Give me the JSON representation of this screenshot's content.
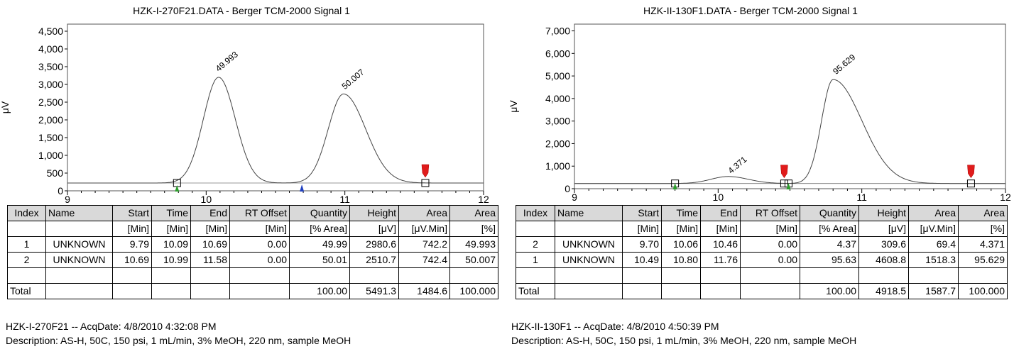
{
  "chart_data": [
    {
      "type": "line",
      "title": "HZK-I-270F21.DATA - Berger TCM-2000 Signal 1",
      "ylabel": "μV",
      "xlim": [
        9,
        12
      ],
      "ylim": [
        0,
        4700
      ],
      "xticks": [
        "9",
        "10",
        "11",
        "12"
      ],
      "yticks": [
        {
          "v": 0,
          "label": "0"
        },
        {
          "v": 500,
          "label": "500"
        },
        {
          "v": 1000,
          "label": "1,000"
        },
        {
          "v": 1500,
          "label": "1,500"
        },
        {
          "v": 2000,
          "label": "2,000"
        },
        {
          "v": 2500,
          "label": "2,500"
        },
        {
          "v": 3000,
          "label": "3,000"
        },
        {
          "v": 3500,
          "label": "3,500"
        },
        {
          "v": 4000,
          "label": "4,000"
        },
        {
          "v": 4500,
          "label": "4,500"
        }
      ],
      "baseline": 220,
      "peaks": [
        {
          "center": 10.09,
          "height": 2980,
          "width_left": 0.11,
          "width_right": 0.12,
          "label": "49.993",
          "label_x": 10.09,
          "label_y": 3350
        },
        {
          "center": 10.99,
          "height": 2510,
          "width_left": 0.11,
          "width_right": 0.16,
          "label": "50.007",
          "label_x": 11.0,
          "label_y": 2850
        }
      ],
      "markers": [
        {
          "type": "square",
          "x": 9.79
        },
        {
          "type": "square",
          "x": 11.58
        },
        {
          "type": "tick-green",
          "x": 9.79
        },
        {
          "type": "tick-blue",
          "x": 10.69
        },
        {
          "type": "flag-red",
          "x": 11.58
        }
      ],
      "table": {
        "headers": [
          "Index",
          "Name",
          "Start",
          "Time",
          "End",
          "RT Offset",
          "Quantity",
          "Height",
          "Area",
          "Area"
        ],
        "units": [
          "",
          "",
          "[Min]",
          "[Min]",
          "[Min]",
          "[Min]",
          "[% Area]",
          "[μV]",
          "[μV.Min]",
          "[%]"
        ],
        "rows": [
          [
            "1",
            "UNKNOWN",
            "9.79",
            "10.09",
            "10.69",
            "0.00",
            "49.99",
            "2980.6",
            "742.2",
            "49.993"
          ],
          [
            "2",
            "UNKNOWN",
            "10.69",
            "10.99",
            "11.58",
            "0.00",
            "50.01",
            "2510.7",
            "742.4",
            "50.007"
          ]
        ],
        "total": [
          "Total",
          "",
          "",
          "",
          "",
          "",
          "100.00",
          "5491.3",
          "1484.6",
          "100.000"
        ]
      },
      "info_line1": "HZK-I-270F21 -- AcqDate: 4/8/2010 4:32:08 PM",
      "info_line2": "Description: AS-H, 50C, 150 psi, 1 mL/min, 3% MeOH,  220 nm, sample MeOH"
    },
    {
      "type": "line",
      "title": "HZK-II-130F1.DATA - Berger TCM-2000 Signal 1",
      "ylabel": "μV",
      "xlim": [
        9,
        12
      ],
      "ylim": [
        0,
        7300
      ],
      "xticks": [
        "9",
        "10",
        "11",
        "12"
      ],
      "yticks": [
        {
          "v": 0,
          "label": "0"
        },
        {
          "v": 1000,
          "label": "1,000"
        },
        {
          "v": 2000,
          "label": "2,000"
        },
        {
          "v": 3000,
          "label": "3,000"
        },
        {
          "v": 4000,
          "label": "4,000"
        },
        {
          "v": 5000,
          "label": "5,000"
        },
        {
          "v": 6000,
          "label": "6,000"
        },
        {
          "v": 7000,
          "label": "7,000"
        }
      ],
      "baseline": 230,
      "peaks": [
        {
          "center": 10.07,
          "height": 310,
          "width_left": 0.12,
          "width_right": 0.14,
          "label": "4.371",
          "label_x": 10.09,
          "label_y": 650
        },
        {
          "center": 10.8,
          "height": 4610,
          "width_left": 0.08,
          "width_right": 0.2,
          "label": "95.629",
          "label_x": 10.82,
          "label_y": 5050
        }
      ],
      "markers": [
        {
          "type": "square",
          "x": 9.7
        },
        {
          "type": "square",
          "x": 10.46
        },
        {
          "type": "square",
          "x": 10.49
        },
        {
          "type": "square",
          "x": 11.76
        },
        {
          "type": "tick-green",
          "x": 9.7
        },
        {
          "type": "tick-green",
          "x": 10.49
        },
        {
          "type": "flag-red",
          "x": 10.46
        },
        {
          "type": "flag-red",
          "x": 11.76
        }
      ],
      "table": {
        "headers": [
          "Index",
          "Name",
          "Start",
          "Time",
          "End",
          "RT Offset",
          "Quantity",
          "Height",
          "Area",
          "Area"
        ],
        "units": [
          "",
          "",
          "[Min]",
          "[Min]",
          "[Min]",
          "[Min]",
          "[% Area]",
          "[μV]",
          "[μV.Min]",
          "[%]"
        ],
        "rows": [
          [
            "2",
            "UNKNOWN",
            "9.70",
            "10.06",
            "10.46",
            "0.00",
            "4.37",
            "309.6",
            "69.4",
            "4.371"
          ],
          [
            "1",
            "UNKNOWN",
            "10.49",
            "10.80",
            "11.76",
            "0.00",
            "95.63",
            "4608.8",
            "1518.3",
            "95.629"
          ]
        ],
        "total": [
          "Total",
          "",
          "",
          "",
          "",
          "",
          "100.00",
          "4918.5",
          "1587.7",
          "100.000"
        ]
      },
      "info_line1": "HZK-II-130F1 -- AcqDate: 4/8/2010 4:50:39 PM",
      "info_line2": "Description: AS-H, 50C, 150 psi, 1 mL/min, 3% MeOH,  220 nm, sample MeOH"
    }
  ]
}
